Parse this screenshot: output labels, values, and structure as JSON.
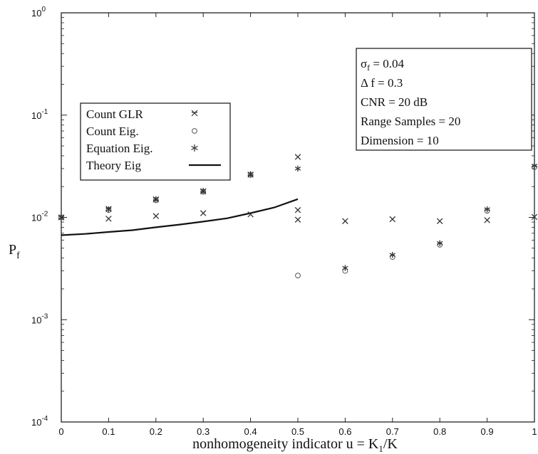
{
  "chart_data": {
    "type": "scatter",
    "xlabel": "nonhomogeneity indicator  u = K",
    "xlabel_sub": "1",
    "xlabel_tail": "/K",
    "ylabel": "P",
    "ylabel_sub": "f",
    "xlim": [
      0,
      1
    ],
    "ylim": [
      0.0001,
      1
    ],
    "yscale": "log",
    "grid": false,
    "x_ticks": [
      "0",
      "0.1",
      "0.2",
      "0.3",
      "0.4",
      "0.5",
      "0.6",
      "0.7",
      "0.8",
      "0.9",
      "1"
    ],
    "y_ticks": [
      {
        "base": "10",
        "exp": "0",
        "value": 1
      },
      {
        "base": "10",
        "exp": "-1",
        "value": 0.1
      },
      {
        "base": "10",
        "exp": "-2",
        "value": 0.01
      },
      {
        "base": "10",
        "exp": "-3",
        "value": 0.001
      },
      {
        "base": "10",
        "exp": "-4",
        "value": 0.0001
      }
    ],
    "legend": {
      "placement": "top-left",
      "entries": [
        {
          "label": "Count GLR",
          "marker": "x-box",
          "sym": "x"
        },
        {
          "label": "Count Eig.",
          "marker": "circle",
          "sym": "o"
        },
        {
          "label": "Equation Eig.",
          "marker": "star",
          "sym": "*"
        },
        {
          "label": "Theory Eig",
          "marker": "line",
          "sym": "line"
        }
      ]
    },
    "params": {
      "placement": "top-right",
      "sigma_symbol": "σ",
      "sigma_sub": "f",
      "sigma_value": " = 0.04",
      "lines": [
        "Δ f = 0.3",
        "CNR = 20 dB",
        "Range Samples = 20",
        "Dimension = 10"
      ]
    },
    "series": [
      {
        "name": "Count GLR",
        "marker": "x",
        "x": [
          0,
          0.1,
          0.2,
          0.3,
          0.4,
          0.5,
          0.6,
          0.7,
          0.8,
          0.9,
          1.0
        ],
        "y": [
          0.01,
          0.0097,
          0.0103,
          0.011,
          0.0107,
          0.0095,
          0.0092,
          0.0096,
          0.0092,
          0.0094,
          0.0101
        ]
      },
      {
        "name": "Count Eig.",
        "marker": "o",
        "x": [
          0,
          0.1,
          0.2,
          0.3,
          0.4,
          0.5,
          0.6,
          0.7,
          0.8,
          0.9,
          1.0
        ],
        "y": [
          0.01,
          0.0118,
          0.0147,
          0.0178,
          0.026,
          0.0027,
          0.003,
          0.0041,
          0.0054,
          0.0116,
          0.031
        ]
      },
      {
        "name": "Equation Eig.",
        "marker": "*",
        "x": [
          0,
          0.1,
          0.2,
          0.3,
          0.4,
          0.5,
          0.6,
          0.7,
          0.8,
          0.9,
          1.0
        ],
        "y": [
          0.01,
          0.012,
          0.0151,
          0.0182,
          0.0265,
          0.03,
          0.0032,
          0.0043,
          0.0056,
          0.012,
          0.032
        ]
      },
      {
        "name": "Count GLR",
        "marker": "x",
        "x": [
          0.1,
          0.2,
          0.3,
          0.4,
          0.5,
          0.5
        ],
        "y": [
          0.0121,
          0.015,
          0.018,
          0.0262,
          0.039,
          0.0118
        ]
      },
      {
        "name": "Theory Eig",
        "marker": "line",
        "x": [
          0,
          0.05,
          0.1,
          0.15,
          0.2,
          0.25,
          0.3,
          0.35,
          0.4,
          0.45,
          0.5
        ],
        "y": [
          0.0067,
          0.0069,
          0.0072,
          0.0075,
          0.008,
          0.0085,
          0.0091,
          0.0098,
          0.011,
          0.0125,
          0.0151
        ]
      }
    ]
  }
}
